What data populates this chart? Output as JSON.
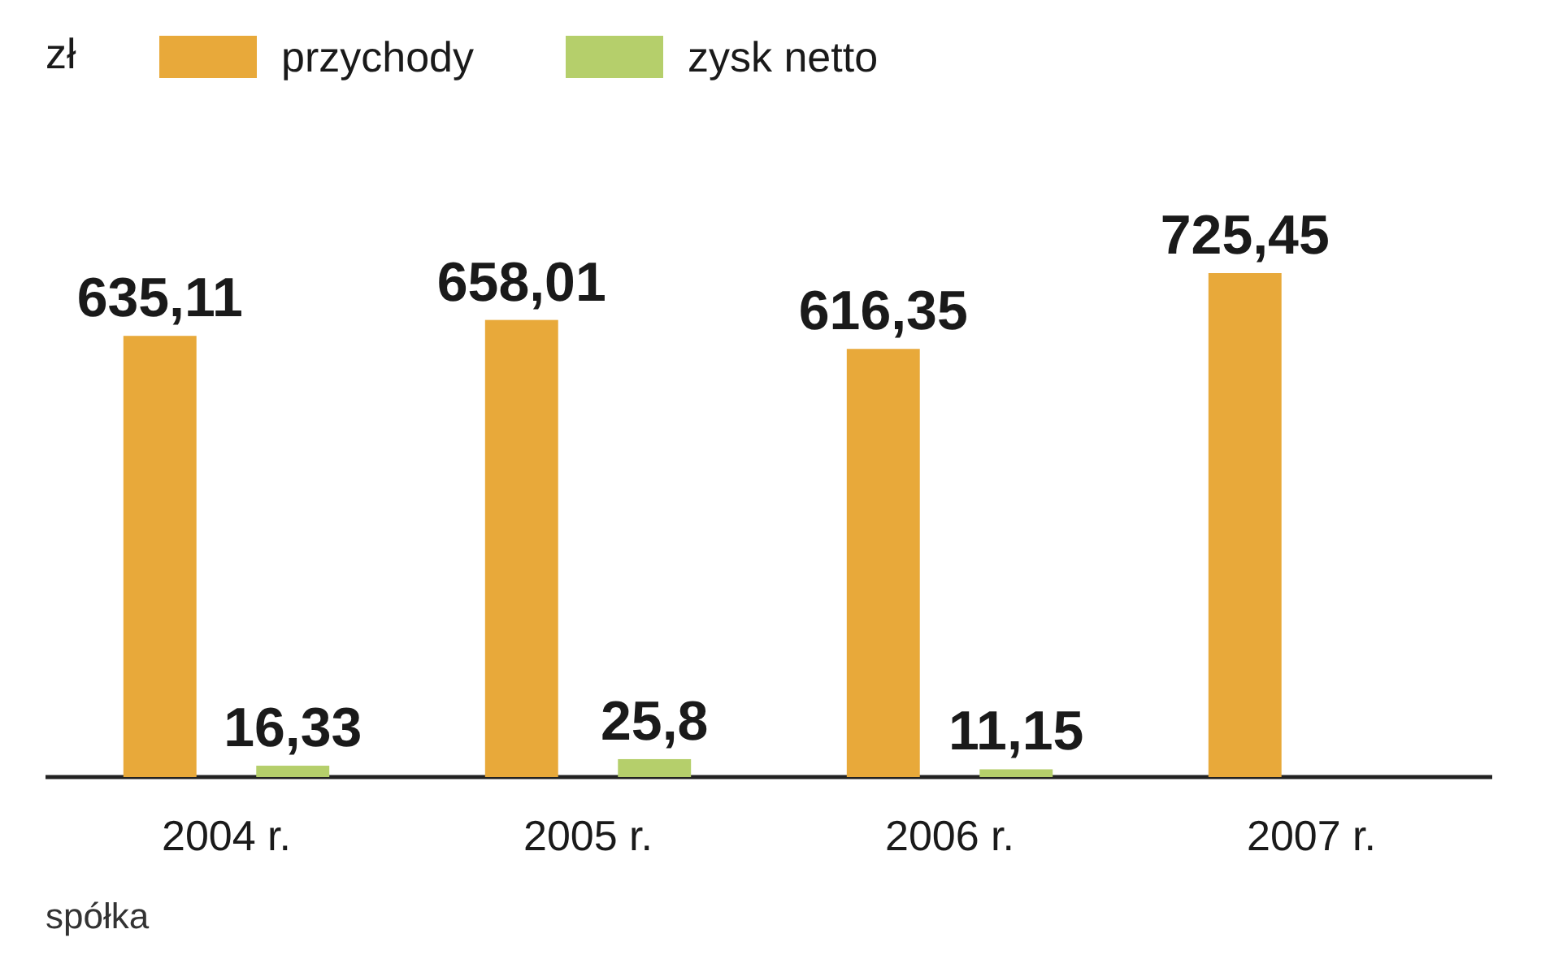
{
  "chart_data": {
    "type": "bar",
    "legend_title": "zł",
    "categories": [
      "2004 r.",
      "2005 r.",
      "2006 r.",
      "2007 r."
    ],
    "series": [
      {
        "name": "przychody",
        "color": "#e8a93a",
        "values": [
          635.11,
          658.01,
          616.35,
          725.45
        ],
        "value_labels": [
          "635,11",
          "658,01",
          "616,35",
          "725,45"
        ]
      },
      {
        "name": "zysk netto",
        "color": "#b5cf6b",
        "values": [
          16.33,
          25.8,
          11.15,
          null
        ],
        "value_labels": [
          "16,33",
          "25,8",
          "11,15",
          null
        ]
      }
    ],
    "legend": "top left",
    "tick_labels": "x",
    "annotations": [
      "spółka"
    ]
  }
}
